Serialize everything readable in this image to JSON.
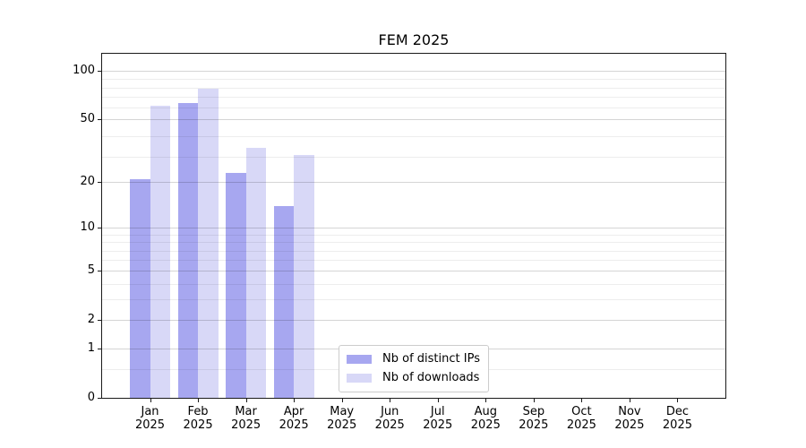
{
  "chart_data": {
    "type": "bar",
    "title": "FEM 2025",
    "year": "2025",
    "categories": [
      "Jan",
      "Feb",
      "Mar",
      "Apr",
      "May",
      "Jun",
      "Jul",
      "Aug",
      "Sep",
      "Oct",
      "Nov",
      "Dec"
    ],
    "series": [
      {
        "name": "Nb of distinct IPs",
        "color": "#a7a7f0",
        "values": [
          21,
          63,
          23,
          14,
          0,
          0,
          0,
          0,
          0,
          0,
          0,
          0
        ]
      },
      {
        "name": "Nb of downloads",
        "color": "#d8d8f7",
        "values": [
          61,
          78,
          33,
          30,
          0,
          0,
          0,
          0,
          0,
          0,
          0,
          0
        ]
      }
    ],
    "y_scale": "log(1+x)",
    "y_ticks_major": [
      0,
      1,
      2,
      5,
      10,
      20,
      50,
      100
    ],
    "y_gridlines_minor": [
      0.5,
      3,
      4,
      6,
      7,
      8,
      9,
      29,
      39,
      59,
      69,
      79,
      89
    ],
    "ylim": [
      0,
      128
    ],
    "grid": true,
    "legend_position": "lower center"
  }
}
